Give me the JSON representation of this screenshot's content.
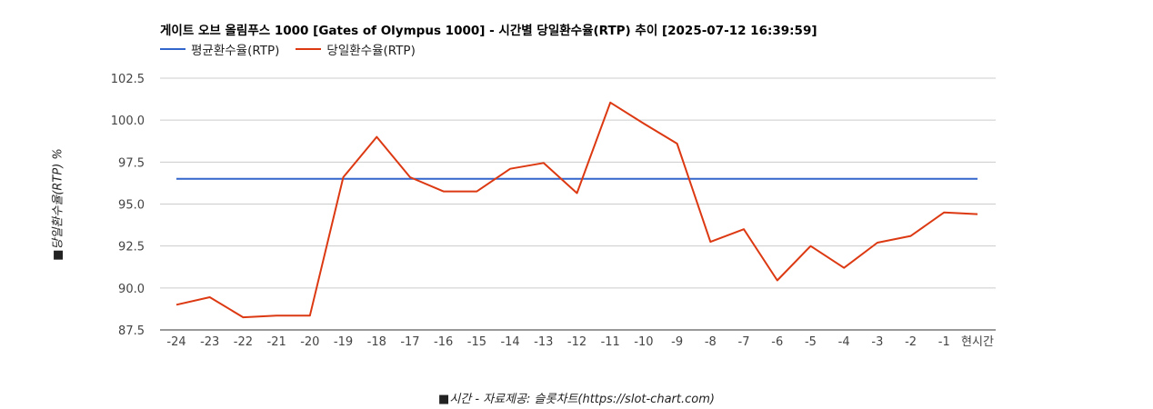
{
  "chart_data": {
    "type": "line",
    "title": "게이트 오브 올림푸스 1000 [Gates of Olympus 1000] - 시간별 당일환수율(RTP) 추이 [2025-07-12 16:39:59]",
    "ylabel": "■당일환수율(RTP) %",
    "xlabel": "■시간 - 자료제공: 슬롯차트(https://slot-chart.com)",
    "categories": [
      "-24",
      "-23",
      "-22",
      "-21",
      "-20",
      "-19",
      "-18",
      "-17",
      "-16",
      "-15",
      "-14",
      "-13",
      "-12",
      "-11",
      "-10",
      "-9",
      "-8",
      "-7",
      "-6",
      "-5",
      "-4",
      "-3",
      "-2",
      "-1",
      "현시간"
    ],
    "ylim": [
      87.5,
      102.5
    ],
    "yticks": [
      "87.5",
      "90.0",
      "92.5",
      "95.0",
      "97.5",
      "100.0",
      "102.5"
    ],
    "grid": true,
    "legend_position": "top-left",
    "series": [
      {
        "name": "평균환수율(RTP)",
        "color": "#3366cc",
        "values": [
          96.5,
          96.5,
          96.5,
          96.5,
          96.5,
          96.5,
          96.5,
          96.5,
          96.5,
          96.5,
          96.5,
          96.5,
          96.5,
          96.5,
          96.5,
          96.5,
          96.5,
          96.5,
          96.5,
          96.5,
          96.5,
          96.5,
          96.5,
          96.5,
          96.5
        ]
      },
      {
        "name": "당일환수율(RTP)",
        "color": "#dc3912",
        "values": [
          89.0,
          89.45,
          88.25,
          88.35,
          88.35,
          96.6,
          99.0,
          96.6,
          95.75,
          95.75,
          97.1,
          97.45,
          95.65,
          101.05,
          99.8,
          98.6,
          92.75,
          93.5,
          90.45,
          92.5,
          91.2,
          92.7,
          93.1,
          94.5,
          94.4
        ]
      }
    ]
  }
}
